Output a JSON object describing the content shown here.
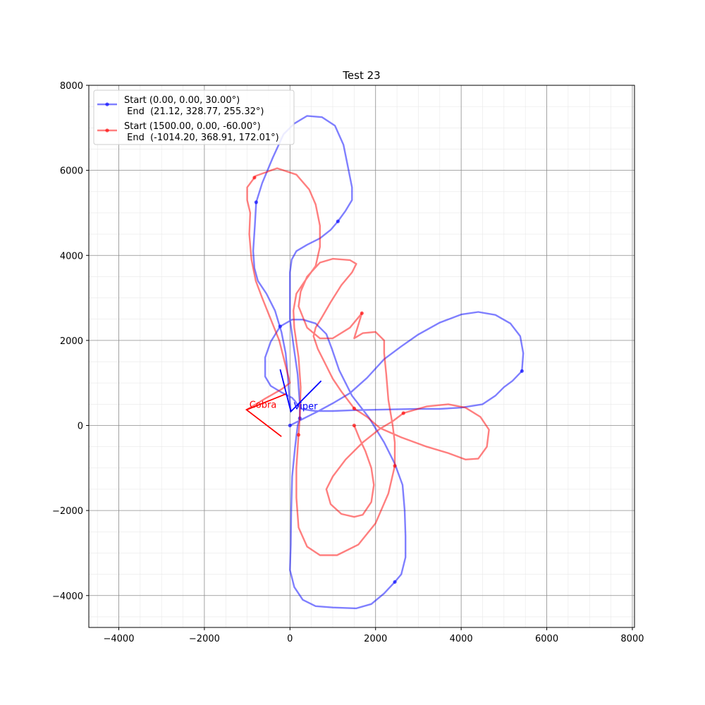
{
  "chart_data": {
    "type": "line",
    "title": "Test 23",
    "xlabel": "",
    "ylabel": "",
    "xlim": [
      -4700,
      8050
    ],
    "ylim": [
      -4750,
      8000
    ],
    "x_ticks": [
      -4000,
      -2000,
      0,
      2000,
      4000,
      6000,
      8000
    ],
    "y_ticks": [
      -4000,
      -2000,
      0,
      2000,
      4000,
      6000,
      8000
    ],
    "x_tick_labels": [
      "−4000",
      "−2000",
      "0",
      "2000",
      "4000",
      "6000",
      "8000"
    ],
    "y_tick_labels": [
      "−4000",
      "−2000",
      "0",
      "2000",
      "4000",
      "6000",
      "8000"
    ],
    "grid": true,
    "legend_position": "top-left",
    "series": [
      {
        "legend_lines": [
          "Start (0.00, 0.00, 30.00°)",
          " End  (21.12, 328.77, 255.32°)"
        ],
        "color": "#0000ff",
        "markers": [
          [
            0,
            0
          ],
          [
            2450,
            -3680
          ],
          [
            5420,
            1280
          ],
          [
            1120,
            4800
          ],
          [
            -790,
            5250
          ],
          [
            -230,
            2330
          ],
          [
            230,
            170
          ]
        ],
        "path": [
          [
            0,
            0
          ],
          [
            350,
            180
          ],
          [
            650,
            330
          ],
          [
            1000,
            520
          ],
          [
            1400,
            760
          ],
          [
            1800,
            1120
          ],
          [
            2200,
            1560
          ],
          [
            2600,
            1860
          ],
          [
            3000,
            2140
          ],
          [
            3500,
            2420
          ],
          [
            4000,
            2610
          ],
          [
            4400,
            2670
          ],
          [
            4800,
            2600
          ],
          [
            5150,
            2400
          ],
          [
            5380,
            2100
          ],
          [
            5450,
            1700
          ],
          [
            5420,
            1280
          ],
          [
            5200,
            1050
          ],
          [
            5000,
            900
          ],
          [
            4800,
            700
          ],
          [
            4500,
            500
          ],
          [
            4000,
            420
          ],
          [
            3500,
            390
          ],
          [
            3000,
            390
          ],
          [
            2500,
            380
          ],
          [
            2000,
            370
          ],
          [
            1500,
            360
          ],
          [
            1000,
            340
          ],
          [
            600,
            340
          ],
          [
            300,
            380
          ],
          [
            200,
            450
          ],
          [
            120,
            570
          ],
          [
            50,
            650
          ],
          [
            -200,
            780
          ],
          [
            -450,
            930
          ],
          [
            -580,
            1150
          ],
          [
            -580,
            1600
          ],
          [
            -450,
            1970
          ],
          [
            -230,
            2330
          ],
          [
            50,
            2490
          ],
          [
            300,
            2490
          ],
          [
            600,
            2400
          ],
          [
            850,
            2150
          ],
          [
            980,
            1800
          ],
          [
            1150,
            1300
          ],
          [
            1450,
            700
          ],
          [
            1850,
            180
          ],
          [
            2200,
            -400
          ],
          [
            2450,
            -900
          ],
          [
            2630,
            -1400
          ],
          [
            2680,
            -2000
          ],
          [
            2700,
            -2600
          ],
          [
            2700,
            -3100
          ],
          [
            2600,
            -3500
          ],
          [
            2450,
            -3680
          ],
          [
            2200,
            -3950
          ],
          [
            1900,
            -4200
          ],
          [
            1550,
            -4300
          ],
          [
            1000,
            -4280
          ],
          [
            600,
            -4250
          ],
          [
            300,
            -4100
          ],
          [
            100,
            -3800
          ],
          [
            0,
            -3400
          ],
          [
            20,
            -2800
          ],
          [
            30,
            -2000
          ],
          [
            50,
            -1200
          ],
          [
            120,
            -500
          ],
          [
            180,
            0
          ],
          [
            230,
            170
          ],
          [
            230,
            500
          ],
          [
            180,
            1200
          ],
          [
            80,
            1900
          ],
          [
            0,
            2500
          ],
          [
            0,
            3200
          ],
          [
            0,
            3600
          ],
          [
            40,
            3900
          ],
          [
            150,
            4100
          ],
          [
            400,
            4250
          ],
          [
            700,
            4400
          ],
          [
            950,
            4600
          ],
          [
            1120,
            4800
          ],
          [
            1300,
            5050
          ],
          [
            1450,
            5300
          ],
          [
            1450,
            5600
          ],
          [
            1350,
            6100
          ],
          [
            1250,
            6600
          ],
          [
            1050,
            7050
          ],
          [
            750,
            7250
          ],
          [
            400,
            7280
          ],
          [
            100,
            7100
          ],
          [
            -150,
            6850
          ],
          [
            -400,
            6300
          ],
          [
            -650,
            5700
          ],
          [
            -790,
            5250
          ],
          [
            -820,
            4700
          ],
          [
            -860,
            4100
          ],
          [
            -830,
            3700
          ],
          [
            -750,
            3400
          ],
          [
            -550,
            3100
          ],
          [
            -350,
            2700
          ],
          [
            -200,
            2200
          ],
          [
            -100,
            1700
          ],
          [
            -50,
            1150
          ],
          [
            -20,
            720
          ],
          [
            10,
            450
          ],
          [
            21.12,
            328.77
          ]
        ]
      },
      {
        "legend_lines": [
          "Start (1500.00, 0.00, -60.00°)",
          " End  (-1014.20, 368.91, 172.01°)"
        ],
        "color": "#ff0000",
        "markers": [
          [
            1500,
            0
          ],
          [
            2650,
            290
          ],
          [
            1680,
            2640
          ],
          [
            -830,
            5830
          ],
          [
            1500,
            400
          ],
          [
            2450,
            -950
          ],
          [
            200,
            -220
          ]
        ],
        "path": [
          [
            1500,
            0
          ],
          [
            1620,
            -300
          ],
          [
            1760,
            -600
          ],
          [
            1900,
            -1000
          ],
          [
            1960,
            -1400
          ],
          [
            1900,
            -1800
          ],
          [
            1700,
            -2100
          ],
          [
            1500,
            -2150
          ],
          [
            1200,
            -2080
          ],
          [
            950,
            -1850
          ],
          [
            850,
            -1500
          ],
          [
            1000,
            -1200
          ],
          [
            1300,
            -800
          ],
          [
            1700,
            -400
          ],
          [
            2100,
            -80
          ],
          [
            2400,
            100
          ],
          [
            2650,
            290
          ],
          [
            3200,
            450
          ],
          [
            3700,
            500
          ],
          [
            4100,
            420
          ],
          [
            4450,
            200
          ],
          [
            4650,
            -100
          ],
          [
            4600,
            -500
          ],
          [
            4400,
            -780
          ],
          [
            4100,
            -800
          ],
          [
            3700,
            -650
          ],
          [
            3200,
            -500
          ],
          [
            2600,
            -280
          ],
          [
            2100,
            -60
          ],
          [
            1800,
            200
          ],
          [
            1500,
            400
          ],
          [
            1200,
            800
          ],
          [
            1000,
            1100
          ],
          [
            800,
            1500
          ],
          [
            650,
            1800
          ],
          [
            550,
            2100
          ],
          [
            600,
            2300
          ],
          [
            750,
            2550
          ],
          [
            950,
            2900
          ],
          [
            1200,
            3300
          ],
          [
            1450,
            3600
          ],
          [
            1550,
            3800
          ],
          [
            1400,
            3890
          ],
          [
            1000,
            3920
          ],
          [
            700,
            3830
          ],
          [
            400,
            3500
          ],
          [
            250,
            3150
          ],
          [
            200,
            2800
          ],
          [
            400,
            2300
          ],
          [
            700,
            2050
          ],
          [
            1000,
            2050
          ],
          [
            1400,
            2300
          ],
          [
            1680,
            2640
          ],
          [
            1500,
            2050
          ],
          [
            1700,
            2170
          ],
          [
            2000,
            2200
          ],
          [
            2200,
            2000
          ],
          [
            2200,
            1700
          ],
          [
            2250,
            1200
          ],
          [
            2300,
            600
          ],
          [
            2400,
            0
          ],
          [
            2450,
            -400
          ],
          [
            2450,
            -950
          ],
          [
            2300,
            -1600
          ],
          [
            2000,
            -2300
          ],
          [
            1600,
            -2800
          ],
          [
            1100,
            -3050
          ],
          [
            700,
            -3050
          ],
          [
            400,
            -2850
          ],
          [
            200,
            -2400
          ],
          [
            150,
            -1700
          ],
          [
            150,
            -1000
          ],
          [
            200,
            -220
          ],
          [
            230,
            200
          ],
          [
            250,
            900
          ],
          [
            200,
            1600
          ],
          [
            100,
            2300
          ],
          [
            80,
            2700
          ],
          [
            150,
            3100
          ],
          [
            350,
            3400
          ],
          [
            600,
            3750
          ],
          [
            700,
            4200
          ],
          [
            700,
            4700
          ],
          [
            600,
            5200
          ],
          [
            450,
            5550
          ],
          [
            150,
            5900
          ],
          [
            -300,
            6050
          ],
          [
            -800,
            5870
          ],
          [
            -830,
            5830
          ],
          [
            -1000,
            5600
          ],
          [
            -1000,
            5300
          ],
          [
            -930,
            5000
          ],
          [
            -950,
            4500
          ],
          [
            -900,
            3900
          ],
          [
            -800,
            3400
          ],
          [
            -650,
            3000
          ],
          [
            -450,
            2500
          ],
          [
            -250,
            2000
          ],
          [
            -100,
            1400
          ],
          [
            0,
            1000
          ],
          [
            -200,
            850
          ],
          [
            -600,
            620
          ],
          [
            -1014.2,
            368.91
          ]
        ]
      }
    ],
    "vehicles": [
      {
        "label": "Cobra",
        "color": "#ff0000",
        "apex": [
          -1014.2,
          368.91
        ],
        "arm_a": [
          -200,
          -260
        ],
        "arm_b": [
          -100,
          740
        ]
      },
      {
        "label": "Viper",
        "color": "#0000ff",
        "apex": [
          21.12,
          328.77
        ],
        "arm_a": [
          -230,
          1320
        ],
        "arm_b": [
          730,
          1050
        ]
      }
    ]
  }
}
